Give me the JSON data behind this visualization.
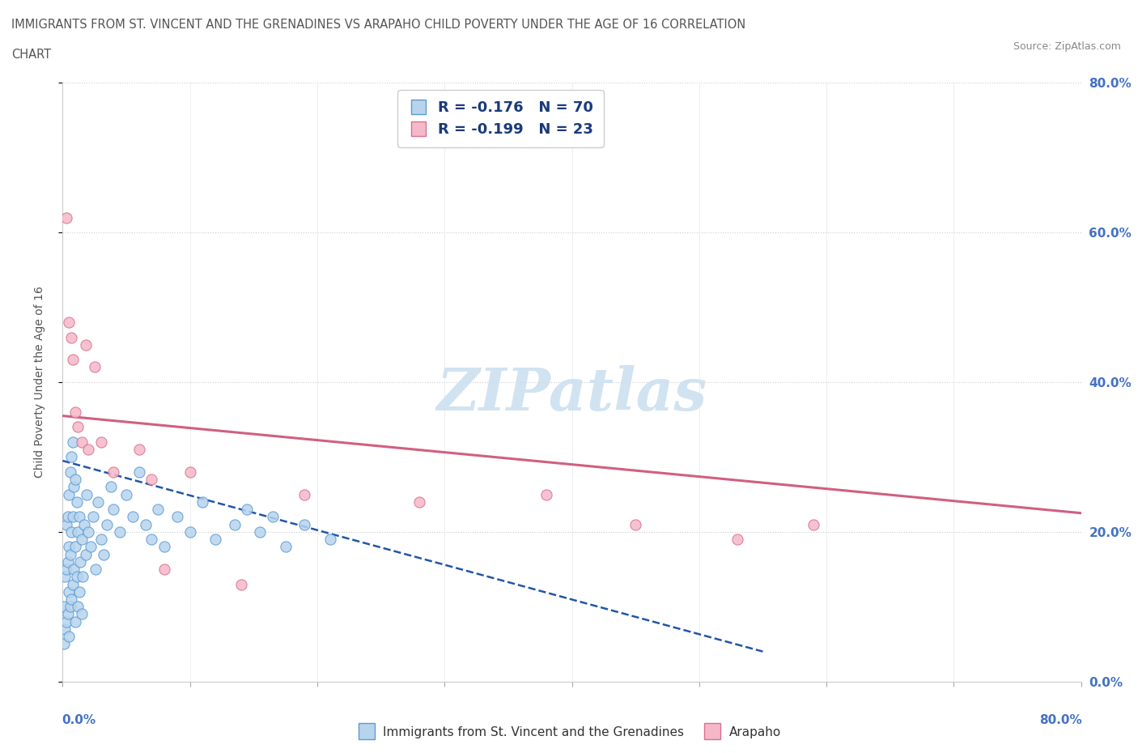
{
  "title_line1": "IMMIGRANTS FROM ST. VINCENT AND THE GRENADINES VS ARAPAHO CHILD POVERTY UNDER THE AGE OF 16 CORRELATION",
  "title_line2": "CHART",
  "source": "Source: ZipAtlas.com",
  "ylabel_label": "Child Poverty Under the Age of 16",
  "legend1_label": "Immigrants from St. Vincent and the Grenadines",
  "legend2_label": "Arapaho",
  "series1_R": -0.176,
  "series1_N": 70,
  "series2_R": -0.199,
  "series2_N": 23,
  "color_blue_fill": "#b8d4ed",
  "color_blue_edge": "#5b9bd5",
  "color_pink_fill": "#f5b8c8",
  "color_pink_edge": "#d97090",
  "watermark_color": "#cce0f0",
  "xlim": [
    0.0,
    0.8
  ],
  "ylim": [
    0.0,
    0.8
  ],
  "right_ytick_labels": [
    "0.0%",
    "20.0%",
    "40.0%",
    "60.0%",
    "80.0%"
  ],
  "right_ytick_color": "#4472c4",
  "blue_scatter_x": [
    0.001,
    0.001,
    0.002,
    0.002,
    0.003,
    0.003,
    0.003,
    0.004,
    0.004,
    0.004,
    0.005,
    0.005,
    0.005,
    0.005,
    0.006,
    0.006,
    0.006,
    0.007,
    0.007,
    0.007,
    0.008,
    0.008,
    0.008,
    0.009,
    0.009,
    0.01,
    0.01,
    0.01,
    0.011,
    0.011,
    0.012,
    0.012,
    0.013,
    0.013,
    0.014,
    0.015,
    0.015,
    0.016,
    0.017,
    0.018,
    0.019,
    0.02,
    0.022,
    0.024,
    0.026,
    0.028,
    0.03,
    0.032,
    0.035,
    0.038,
    0.04,
    0.045,
    0.05,
    0.055,
    0.06,
    0.065,
    0.07,
    0.075,
    0.08,
    0.09,
    0.1,
    0.11,
    0.12,
    0.135,
    0.145,
    0.155,
    0.165,
    0.175,
    0.19,
    0.21
  ],
  "blue_scatter_y": [
    0.05,
    0.1,
    0.07,
    0.14,
    0.08,
    0.15,
    0.21,
    0.09,
    0.16,
    0.22,
    0.06,
    0.12,
    0.18,
    0.25,
    0.1,
    0.17,
    0.28,
    0.11,
    0.2,
    0.3,
    0.13,
    0.22,
    0.32,
    0.15,
    0.26,
    0.08,
    0.18,
    0.27,
    0.14,
    0.24,
    0.1,
    0.2,
    0.12,
    0.22,
    0.16,
    0.09,
    0.19,
    0.14,
    0.21,
    0.17,
    0.25,
    0.2,
    0.18,
    0.22,
    0.15,
    0.24,
    0.19,
    0.17,
    0.21,
    0.26,
    0.23,
    0.2,
    0.25,
    0.22,
    0.28,
    0.21,
    0.19,
    0.23,
    0.18,
    0.22,
    0.2,
    0.24,
    0.19,
    0.21,
    0.23,
    0.2,
    0.22,
    0.18,
    0.21,
    0.19
  ],
  "pink_scatter_x": [
    0.003,
    0.005,
    0.007,
    0.008,
    0.01,
    0.012,
    0.015,
    0.018,
    0.02,
    0.025,
    0.03,
    0.04,
    0.06,
    0.07,
    0.08,
    0.1,
    0.14,
    0.19,
    0.28,
    0.38,
    0.45,
    0.53,
    0.59
  ],
  "pink_scatter_y": [
    0.62,
    0.48,
    0.46,
    0.43,
    0.36,
    0.34,
    0.32,
    0.45,
    0.31,
    0.42,
    0.32,
    0.28,
    0.31,
    0.27,
    0.15,
    0.28,
    0.13,
    0.25,
    0.24,
    0.25,
    0.21,
    0.19,
    0.21
  ],
  "blue_trendline_x": [
    0.0,
    0.55
  ],
  "blue_trendline_y": [
    0.295,
    0.04
  ],
  "pink_trendline_x": [
    0.0,
    0.8
  ],
  "pink_trendline_y": [
    0.355,
    0.225
  ]
}
